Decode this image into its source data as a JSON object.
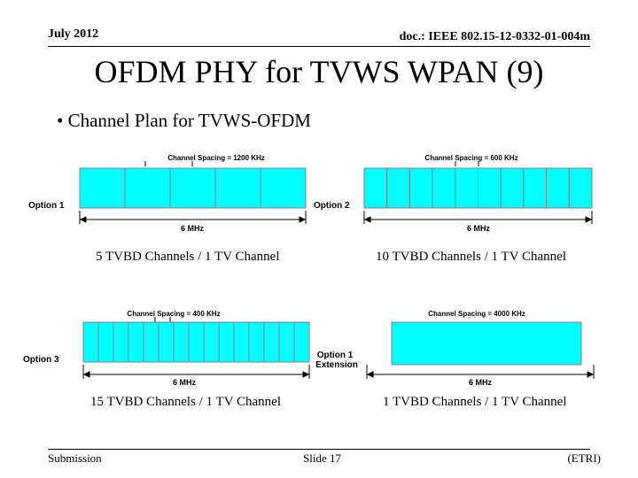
{
  "header": {
    "date": "July 2012",
    "doc": "doc.: IEEE 802.15-12-0332-01-004m"
  },
  "slide": {
    "title": "OFDM PHY for TVWS WPAN (9)",
    "bullet": "• Channel Plan for TVWS-OFDM"
  },
  "diagrams": [
    {
      "option_label": "Option 1",
      "spacing_label": "Channel Spacing = 1200 KHz",
      "width_label": "6 MHz",
      "channels": 5,
      "caption": "5 TVBD Channels / 1 TV Channel"
    },
    {
      "option_label": "Option 2",
      "spacing_label": "Channel Spacing = 600 KHz",
      "width_label": "6 MHz",
      "channels": 10,
      "caption": "10 TVBD Channels / 1 TV Channel"
    },
    {
      "option_label": "Option 3",
      "spacing_label": "Channel Spacing = 400 KHz",
      "width_label": "6 MHz",
      "channels": 15,
      "caption": "15 TVBD Channels / 1 TV Channel"
    },
    {
      "option_label": "Option 1",
      "option_label2": "Extension",
      "spacing_label": "Channel Spacing = 4000 KHz",
      "width_label": "6 MHz",
      "channels": 1,
      "caption": "1 TVBD Channels / 1 TV Channel"
    }
  ],
  "colors": {
    "channel_fill": "#00ffff",
    "channel_border": "#808080"
  },
  "footer": {
    "left": "Submission",
    "center": "Slide 17",
    "right": "(ETRI)"
  }
}
